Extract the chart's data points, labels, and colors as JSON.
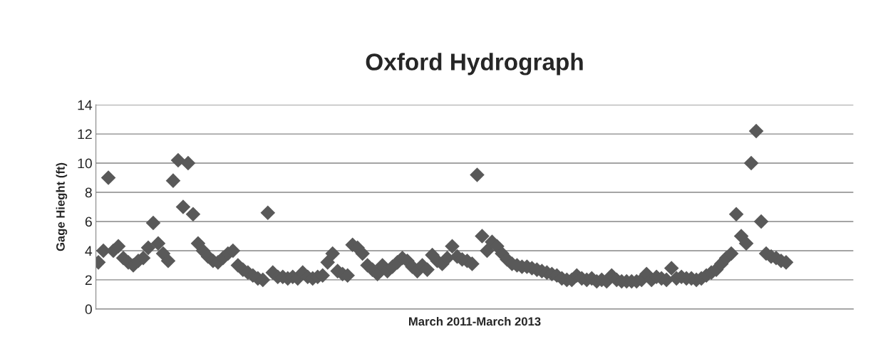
{
  "chart_data": {
    "type": "scatter",
    "title": "Oxford Hydrograph",
    "xlabel": "March 2011-March 2013",
    "ylabel": "Gage Hieght (ft)",
    "categories": [
      null,
      null,
      null,
      null,
      null,
      null,
      null,
      null,
      null,
      null,
      null,
      null,
      null,
      null,
      null,
      null,
      null,
      null,
      null,
      null,
      null,
      null,
      null,
      null,
      null,
      null,
      null,
      null,
      null,
      null,
      null,
      null,
      null,
      null,
      null,
      null,
      null,
      null,
      null,
      null,
      null,
      null,
      null,
      null,
      null,
      null,
      null,
      null,
      null,
      null,
      null,
      null,
      null,
      null,
      null,
      null,
      null,
      null,
      null,
      null,
      null,
      null,
      null,
      null,
      null,
      null,
      null,
      null,
      null,
      null,
      null,
      null,
      null,
      null,
      null,
      null,
      null,
      null,
      null,
      null,
      null,
      null,
      null,
      null,
      null,
      null,
      null,
      null,
      null,
      null,
      null,
      null,
      null,
      null,
      null,
      null,
      null,
      null,
      null,
      null,
      null,
      null,
      null,
      null,
      null,
      null,
      null,
      null,
      null,
      null,
      null,
      null,
      null,
      null,
      null,
      null,
      null,
      null,
      null,
      null,
      null,
      null,
      null,
      null,
      null,
      null,
      null,
      null,
      null,
      null,
      null,
      null,
      null,
      null,
      null,
      null,
      null,
      null,
      null,
      null,
      null,
      null,
      null,
      null,
      null,
      null,
      null,
      null,
      null,
      null,
      null,
      null
    ],
    "series": [
      {
        "color": "#595959",
        "values": [
          3.2,
          4,
          9.0,
          4,
          4.3,
          3.5,
          3.2,
          3.0,
          3.3,
          3.5,
          4.2,
          5.9,
          4.5,
          3.8,
          3.3,
          8.8,
          10.2,
          7.0,
          10.0,
          6.5,
          4.5,
          4.0,
          3.6,
          3.3,
          3.2,
          3.5,
          3.8,
          4.0,
          3.0,
          2.7,
          2.5,
          2.3,
          2.1,
          2.0,
          6.6,
          2.5,
          2.2,
          2.2,
          2.1,
          2.2,
          2.1,
          2.5,
          2.2,
          2.1,
          2.2,
          2.3,
          3.2,
          3.8,
          2.6,
          2.4,
          2.3,
          4.4,
          4.2,
          3.8,
          3.0,
          2.7,
          2.4,
          3.0,
          2.6,
          2.9,
          3.2,
          3.5,
          3.3,
          2.9,
          2.6,
          3.0,
          2.7,
          3.7,
          3.3,
          3.1,
          3.5,
          4.3,
          3.6,
          3.4,
          3.3,
          3.1,
          9.2,
          5.0,
          4.0,
          4.6,
          4.3,
          3.8,
          3.4,
          3.1,
          3.0,
          2.9,
          2.9,
          2.8,
          2.7,
          2.6,
          2.5,
          2.4,
          2.3,
          2.1,
          2.0,
          2.0,
          2.3,
          2.1,
          2.0,
          2.1,
          1.9,
          2.0,
          1.9,
          2.3,
          2.0,
          1.9,
          1.9,
          1.9,
          1.9,
          2.0,
          2.4,
          2.0,
          2.2,
          2.1,
          2.0,
          2.8,
          2.1,
          2.2,
          2.1,
          2.1,
          2.0,
          2.1,
          2.3,
          2.5,
          2.7,
          3.1,
          3.5,
          3.8,
          6.5,
          5.0,
          4.5,
          10.0,
          12.2,
          6.0,
          3.8,
          3.6,
          3.5,
          3.3,
          3.2,
          null,
          null,
          null,
          null,
          null,
          null,
          null,
          null,
          null,
          null,
          null,
          null,
          null
        ]
      }
    ],
    "ylim": [
      0,
      14
    ],
    "yticks": [
      0,
      2,
      4,
      6,
      8,
      10,
      12,
      14
    ],
    "grid": "y",
    "marker": "diamond",
    "tick_labels": "y"
  }
}
